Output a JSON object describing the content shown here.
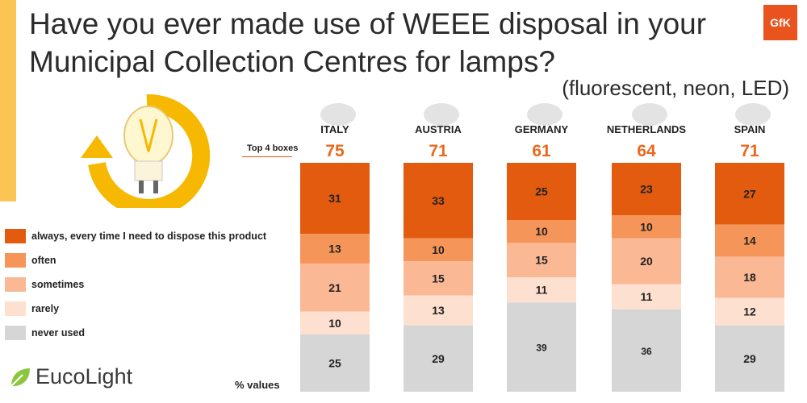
{
  "title": "Have you ever made use of WEEE disposal in your Municipal Collection Centres for lamps?",
  "subtitle": "(fluorescent, neon, LED)",
  "brand": {
    "gfk": "GfK",
    "logo": "EucoLight"
  },
  "top4_label": "Top 4 boxes",
  "note": "% values",
  "colors": {
    "always": "#e35b0e",
    "often": "#f6955a",
    "sometimes": "#fab894",
    "rarely": "#fde0cf",
    "never": "#d6d6d6",
    "accent": "#fbc554",
    "top4_text": "#e8691e"
  },
  "legend": [
    {
      "key": "always",
      "label": "always, every time I need to dispose this product"
    },
    {
      "key": "often",
      "label": "often"
    },
    {
      "key": "sometimes",
      "label": "sometimes"
    },
    {
      "key": "rarely",
      "label": "rarely"
    },
    {
      "key": "never",
      "label": "never used"
    }
  ],
  "chart_data": {
    "type": "bar",
    "stacked": true,
    "categories": [
      "ITALY",
      "AUSTRIA",
      "GERMANY",
      "NETHERLANDS",
      "SPAIN"
    ],
    "top4": [
      75,
      71,
      61,
      64,
      71
    ],
    "series": [
      {
        "name": "always, every time I need to dispose this product",
        "key": "always",
        "values": [
          31,
          33,
          25,
          23,
          27
        ]
      },
      {
        "name": "often",
        "key": "often",
        "values": [
          13,
          10,
          10,
          10,
          14
        ]
      },
      {
        "name": "sometimes",
        "key": "sometimes",
        "values": [
          21,
          15,
          15,
          20,
          18
        ]
      },
      {
        "name": "rarely",
        "key": "rarely",
        "values": [
          10,
          13,
          11,
          11,
          12
        ]
      },
      {
        "name": "never used",
        "key": "never",
        "values": [
          25,
          29,
          39,
          36,
          29
        ]
      }
    ],
    "ylim": [
      0,
      100
    ]
  }
}
